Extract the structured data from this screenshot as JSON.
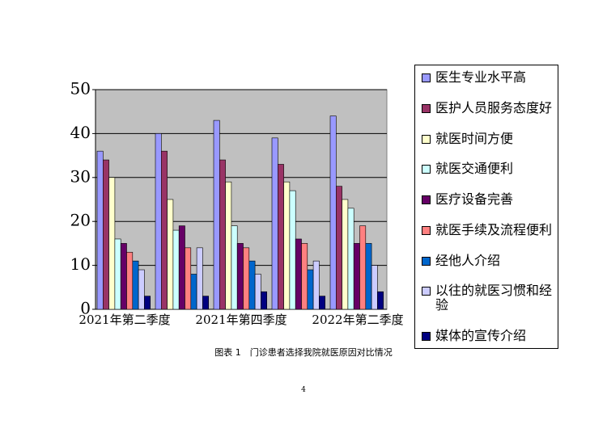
{
  "chart_data": {
    "type": "bar",
    "categories": [
      "2021年第二季度",
      null,
      "2021年第四季度",
      null,
      "2022年第二季度"
    ],
    "series": [
      {
        "name": "医生专业水平高",
        "color": "#9999ff",
        "values": [
          36,
          40,
          43,
          39,
          44
        ]
      },
      {
        "name": "医护人员服务态度好",
        "color": "#993366",
        "values": [
          34,
          36,
          34,
          33,
          28
        ]
      },
      {
        "name": "就医时间方便",
        "color": "#ffffcc",
        "values": [
          30,
          25,
          29,
          29,
          25
        ]
      },
      {
        "name": "就医交通便利",
        "color": "#ccffff",
        "values": [
          16,
          18,
          19,
          27,
          23
        ]
      },
      {
        "name": "医疗设备完善",
        "color": "#660066",
        "values": [
          15,
          19,
          15,
          16,
          15
        ]
      },
      {
        "name": "就医手续及流程便利",
        "color": "#ff8080",
        "values": [
          13,
          14,
          14,
          15,
          19
        ]
      },
      {
        "name": "经他人介绍",
        "color": "#0066cc",
        "values": [
          11,
          8,
          11,
          9,
          15
        ]
      },
      {
        "name": "以往的就医习惯和经验",
        "color": "#ccccff",
        "values": [
          9,
          14,
          8,
          11,
          10
        ]
      },
      {
        "name": "媒体的宣传介绍",
        "color": "#000080",
        "values": [
          3,
          3,
          4,
          3,
          4
        ]
      }
    ],
    "ylim": [
      0,
      50
    ],
    "yticks": [
      0,
      10,
      20,
      30,
      40,
      50
    ],
    "grid": true,
    "legend": "right",
    "plot_background": "#c0c0c0"
  },
  "caption": "图表 1　门诊患者选择我院就医原因对比情况",
  "page_number": "4"
}
